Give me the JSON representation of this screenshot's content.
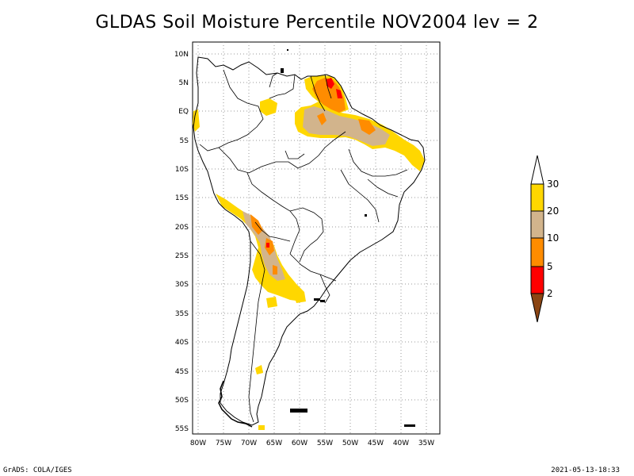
{
  "title": "GLDAS Soil Moisture Percentile NOV2004 lev = 2",
  "footer": {
    "left": "GrADS: COLA/IGES",
    "right": "2021-05-13-18:33"
  },
  "map": {
    "lat_labels": [
      "10N",
      "5N",
      "EQ",
      "5S",
      "10S",
      "15S",
      "20S",
      "25S",
      "30S",
      "35S",
      "40S",
      "45S",
      "50S",
      "55S"
    ],
    "lon_labels": [
      "80W",
      "75W",
      "70W",
      "65W",
      "60W",
      "55W",
      "50W",
      "45W",
      "40W",
      "35W"
    ]
  },
  "legend": {
    "labels": [
      "30",
      "20",
      "10",
      "5",
      "2"
    ],
    "colors": {
      "above_30": "#ffffff",
      "20_30": "#ffd700",
      "10_20": "#d2b48c",
      "5_10": "#ff8c00",
      "2_5": "#ff0000",
      "below_2": "#8b4513"
    }
  }
}
